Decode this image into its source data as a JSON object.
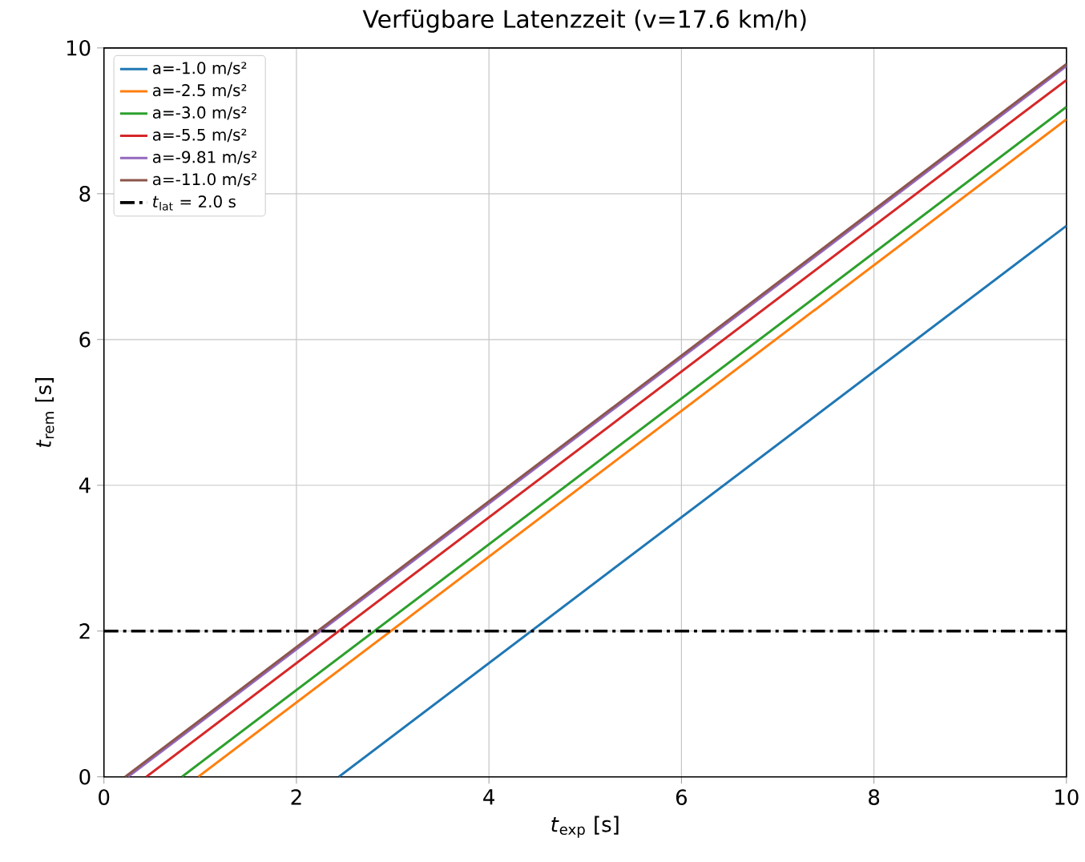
{
  "chart_data": {
    "type": "line",
    "title": "Verfügbare Latenzzeit (v=17.6 km/h)",
    "xlabel": "*t*$_{exp}$ [s]",
    "ylabel": "*t*$_{rem}$ [s]",
    "xlim": [
      0,
      10
    ],
    "ylim": [
      0,
      10
    ],
    "xticks": [
      0,
      2,
      4,
      6,
      8,
      10
    ],
    "yticks": [
      0,
      2,
      4,
      6,
      8,
      10
    ],
    "grid": true,
    "legend": "top left",
    "series": [
      {
        "name": "a=-1.0 m/s²",
        "color": "#1f77b4",
        "x": [
          2.44,
          10
        ],
        "values": [
          0,
          7.56
        ]
      },
      {
        "name": "a=-2.5 m/s²",
        "color": "#ff7f0e",
        "x": [
          0.98,
          10
        ],
        "values": [
          0,
          9.02
        ]
      },
      {
        "name": "a=-3.0 m/s²",
        "color": "#2ca02c",
        "x": [
          0.81,
          10
        ],
        "values": [
          0,
          9.19
        ]
      },
      {
        "name": "a=-5.5 m/s²",
        "color": "#d62728",
        "x": [
          0.44,
          10
        ],
        "values": [
          0,
          9.56
        ]
      },
      {
        "name": "a=-9.81 m/s²",
        "color": "#9467bd",
        "x": [
          0.25,
          10
        ],
        "values": [
          0,
          9.75
        ]
      },
      {
        "name": "a=-11.0 m/s²",
        "color": "#8c564b",
        "x": [
          0.22,
          10
        ],
        "values": [
          0,
          9.78
        ]
      }
    ],
    "ref_lines": [
      {
        "axis": "y",
        "value": 2,
        "label": "*t*$_{lat}$ = 2.0 s",
        "color": "#000000",
        "line_style": "dashdot"
      }
    ]
  }
}
